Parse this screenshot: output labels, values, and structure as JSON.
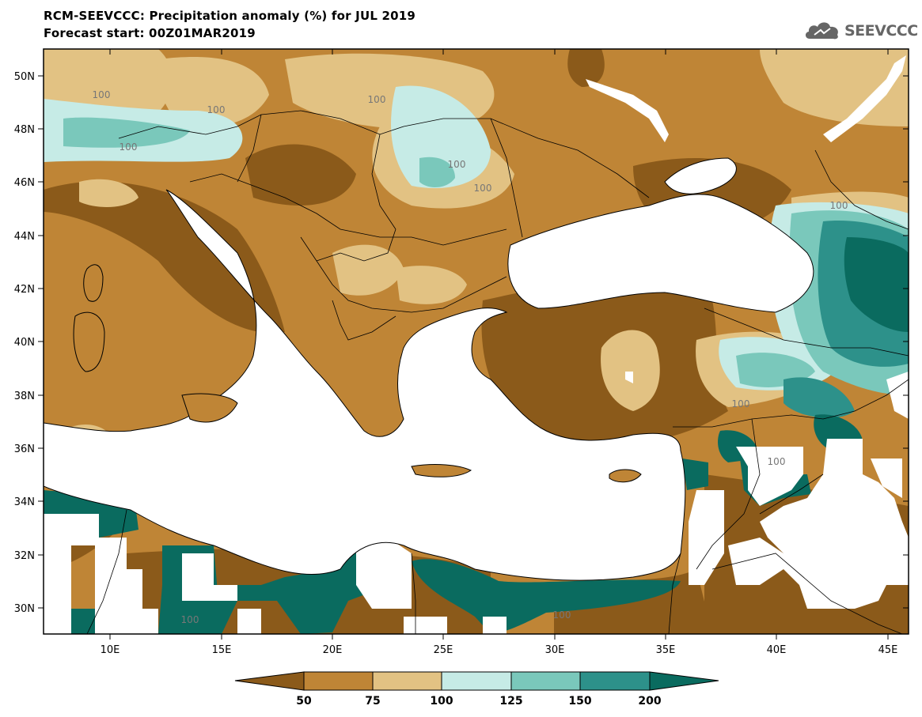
{
  "title_line1": "RCM-SEEVCCC: Precipitation anomaly (%) for JUL 2019",
  "title_line2": "Forecast start: 00Z01MAR2019",
  "logo": {
    "icon": "cloud-icon",
    "text": "SEEVCCC"
  },
  "axes": {
    "lat_labels": [
      "50N",
      "48N",
      "46N",
      "44N",
      "42N",
      "40N",
      "38N",
      "36N",
      "34N",
      "32N",
      "30N"
    ],
    "lon_labels": [
      "10E",
      "15E",
      "20E",
      "25E",
      "30E",
      "35E",
      "40E",
      "45E"
    ]
  },
  "contour_labels": [
    "100",
    "100",
    "100",
    "100",
    "100",
    "100",
    "100",
    "100",
    "100",
    "100",
    "100",
    "100"
  ],
  "colorbar": {
    "colors": [
      "#8b5a1a",
      "#bf8536",
      "#e2c283",
      "#c6ebe6",
      "#7ac8bb",
      "#2d918a",
      "#0a6b5f"
    ],
    "labels": [
      "50",
      "75",
      "100",
      "125",
      "150",
      "200"
    ]
  }
}
